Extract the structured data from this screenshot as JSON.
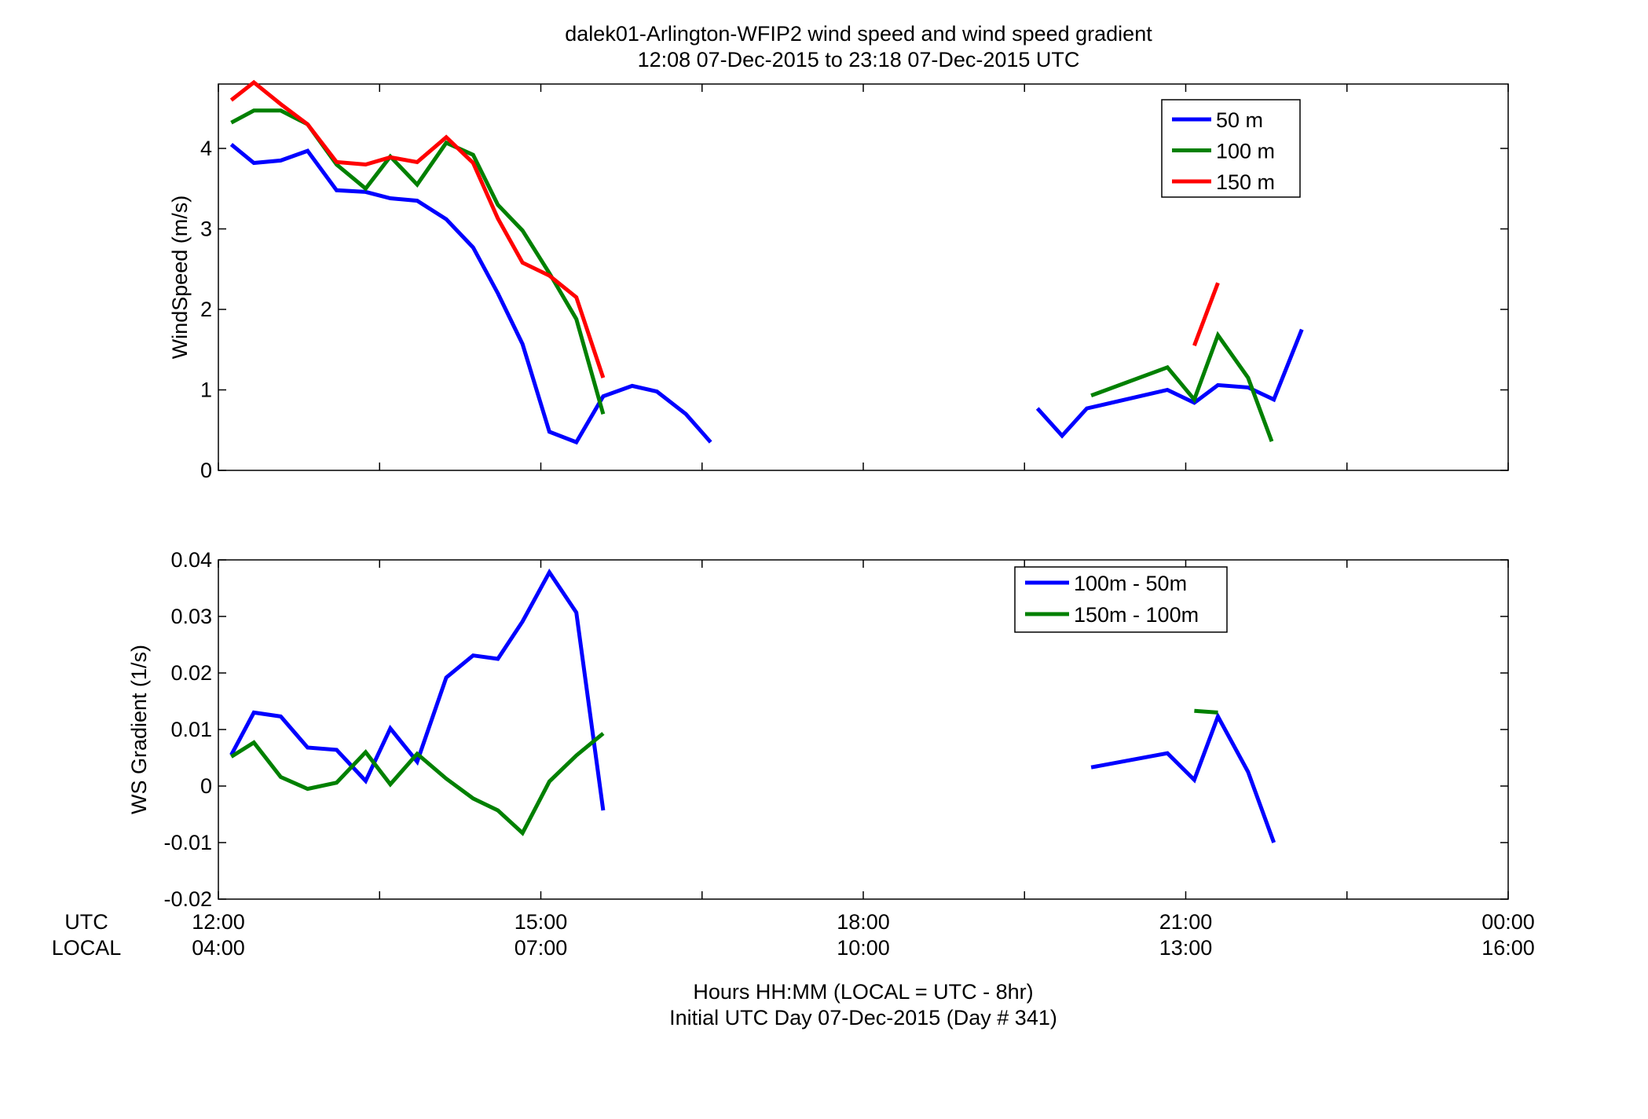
{
  "figure": {
    "title_line1": "dalek01-Arlington-WFIP2  wind speed and wind speed gradient",
    "title_line2": "12:08 07-Dec-2015 to 23:18 07-Dec-2015  UTC",
    "row_label_utc": "UTC",
    "row_label_local": "LOCAL",
    "xlabel_line1": "Hours HH:MM  (LOCAL = UTC - 8hr)",
    "xlabel_line2": "Initial UTC Day 07-Dec-2015 (Day # 341)",
    "x_tick_utc": [
      "12:00",
      "15:00",
      "18:00",
      "21:00",
      "00:00"
    ],
    "x_tick_local": [
      "04:00",
      "07:00",
      "10:00",
      "13:00",
      "16:00"
    ]
  },
  "chart_data": [
    {
      "type": "line",
      "ylabel": "WindSpeed (m/s)",
      "xlim": [
        12,
        24
      ],
      "ylim": [
        0,
        4.8
      ],
      "yticks": [
        0,
        1,
        2,
        3,
        4
      ],
      "ytick_labels": [
        "0",
        "1",
        "2",
        "3",
        "4"
      ],
      "legend_position": "top-right",
      "colors": {
        "50 m": "#0000ff",
        "100 m": "#008000",
        "150 m": "#ff0000"
      },
      "series": [
        {
          "name": "50 m",
          "color": "#0000ff",
          "segments": [
            [
              [
                12.12,
                4.05
              ],
              [
                12.33,
                3.82
              ],
              [
                12.58,
                3.85
              ],
              [
                12.83,
                3.97
              ],
              [
                13.1,
                3.48
              ],
              [
                13.37,
                3.46
              ],
              [
                13.6,
                3.38
              ],
              [
                13.85,
                3.35
              ],
              [
                14.12,
                3.12
              ],
              [
                14.37,
                2.77
              ],
              [
                14.6,
                2.2
              ],
              [
                14.83,
                1.57
              ],
              [
                15.08,
                0.48
              ],
              [
                15.33,
                0.35
              ],
              [
                15.58,
                0.92
              ],
              [
                15.85,
                1.05
              ],
              [
                16.08,
                0.98
              ],
              [
                16.35,
                0.7
              ],
              [
                16.58,
                0.35
              ]
            ],
            [
              [
                19.62,
                0.77
              ],
              [
                19.85,
                0.43
              ],
              [
                20.08,
                0.77
              ],
              [
                20.83,
                1.0
              ],
              [
                21.08,
                0.84
              ],
              [
                21.3,
                1.06
              ],
              [
                21.58,
                1.03
              ],
              [
                21.82,
                0.88
              ],
              [
                22.08,
                1.75
              ]
            ]
          ]
        },
        {
          "name": "100 m",
          "color": "#008000",
          "segments": [
            [
              [
                12.12,
                4.32
              ],
              [
                12.33,
                4.47
              ],
              [
                12.58,
                4.47
              ],
              [
                12.83,
                4.3
              ],
              [
                13.1,
                3.8
              ],
              [
                13.37,
                3.5
              ],
              [
                13.6,
                3.9
              ],
              [
                13.85,
                3.55
              ],
              [
                14.12,
                4.07
              ],
              [
                14.37,
                3.92
              ],
              [
                14.6,
                3.3
              ],
              [
                14.83,
                2.98
              ],
              [
                15.08,
                2.45
              ],
              [
                15.33,
                1.88
              ],
              [
                15.58,
                0.7
              ]
            ],
            [
              [
                20.12,
                0.93
              ],
              [
                20.83,
                1.28
              ],
              [
                21.08,
                0.88
              ],
              [
                21.3,
                1.68
              ],
              [
                21.58,
                1.15
              ],
              [
                21.8,
                0.36
              ]
            ]
          ]
        },
        {
          "name": "150 m",
          "color": "#ff0000",
          "segments": [
            [
              [
                12.12,
                4.6
              ],
              [
                12.33,
                4.82
              ],
              [
                12.58,
                4.55
              ],
              [
                12.83,
                4.3
              ],
              [
                13.1,
                3.83
              ],
              [
                13.37,
                3.8
              ],
              [
                13.6,
                3.89
              ],
              [
                13.85,
                3.83
              ],
              [
                14.12,
                4.14
              ],
              [
                14.37,
                3.82
              ],
              [
                14.6,
                3.13
              ],
              [
                14.83,
                2.58
              ],
              [
                15.08,
                2.42
              ],
              [
                15.33,
                2.15
              ],
              [
                15.58,
                1.15
              ]
            ],
            [
              [
                21.08,
                1.55
              ],
              [
                21.3,
                2.33
              ]
            ]
          ]
        }
      ]
    },
    {
      "type": "line",
      "ylabel": "WS Gradient (1/s)",
      "xlim": [
        12,
        24
      ],
      "ylim": [
        -0.02,
        0.04
      ],
      "yticks": [
        -0.02,
        -0.01,
        0,
        0.01,
        0.02,
        0.03,
        0.04
      ],
      "ytick_labels": [
        "-0.02",
        "-0.01",
        "0",
        "0.01",
        "0.02",
        "0.03",
        "0.04"
      ],
      "legend_position": "top-right",
      "colors": {
        "100m - 50m": "#0000ff",
        "150m - 100m": "#008000"
      },
      "series": [
        {
          "name": "100m - 50m",
          "color": "#0000ff",
          "segments": [
            [
              [
                12.12,
                0.0055
              ],
              [
                12.33,
                0.013
              ],
              [
                12.58,
                0.0123
              ],
              [
                12.83,
                0.0068
              ],
              [
                13.1,
                0.0064
              ],
              [
                13.37,
                0.0009
              ],
              [
                13.6,
                0.0102
              ],
              [
                13.85,
                0.0043
              ],
              [
                14.12,
                0.0192
              ],
              [
                14.37,
                0.0231
              ],
              [
                14.6,
                0.0225
              ],
              [
                14.83,
                0.0291
              ],
              [
                15.08,
                0.0378
              ],
              [
                15.33,
                0.0307
              ],
              [
                15.58,
                -0.0043
              ]
            ],
            [
              [
                20.12,
                0.0033
              ],
              [
                20.83,
                0.0058
              ],
              [
                21.08,
                0.0011
              ],
              [
                21.3,
                0.0123
              ],
              [
                21.58,
                0.0025
              ],
              [
                21.82,
                -0.01
              ]
            ]
          ]
        },
        {
          "name": "150m - 100m",
          "color": "#008000",
          "segments": [
            [
              [
                12.12,
                0.0052
              ],
              [
                12.33,
                0.0077
              ],
              [
                12.58,
                0.0016
              ],
              [
                12.83,
                -0.0005
              ],
              [
                13.1,
                0.0006
              ],
              [
                13.37,
                0.006
              ],
              [
                13.6,
                0.0003
              ],
              [
                13.85,
                0.0057
              ],
              [
                14.12,
                0.0013
              ],
              [
                14.37,
                -0.0022
              ],
              [
                14.6,
                -0.0043
              ],
              [
                14.83,
                -0.0083
              ],
              [
                15.08,
                0.0008
              ],
              [
                15.33,
                0.0054
              ],
              [
                15.58,
                0.0093
              ]
            ],
            [
              [
                21.08,
                0.0133
              ],
              [
                21.3,
                0.013
              ]
            ]
          ]
        }
      ]
    }
  ]
}
